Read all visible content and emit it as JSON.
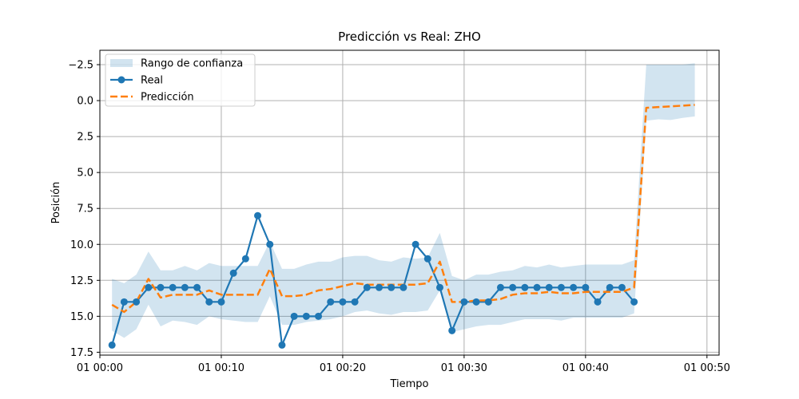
{
  "chart_data": {
    "type": "line",
    "title": "Predicción vs Real: ZHO",
    "xlabel": "Tiempo",
    "ylabel": "Posición",
    "y_inverted": true,
    "ylim": [
      17.7,
      -3.5
    ],
    "xlim": [
      "01 00:00",
      "01 00:51"
    ],
    "x_ticks": [
      {
        "value": 0,
        "label": "01 00:00"
      },
      {
        "value": 10,
        "label": "01 00:10"
      },
      {
        "value": 20,
        "label": "01 00:20"
      },
      {
        "value": 30,
        "label": "01 00:30"
      },
      {
        "value": 40,
        "label": "01 00:40"
      },
      {
        "value": 50,
        "label": "01 00:50"
      }
    ],
    "y_ticks": [
      {
        "value": -2.5,
        "label": "−2.5"
      },
      {
        "value": 0,
        "label": "0.0"
      },
      {
        "value": 2.5,
        "label": "2.5"
      },
      {
        "value": 5,
        "label": "5.0"
      },
      {
        "value": 7.5,
        "label": "7.5"
      },
      {
        "value": 10,
        "label": "10.0"
      },
      {
        "value": 12.5,
        "label": "12.5"
      },
      {
        "value": 15,
        "label": "15.0"
      },
      {
        "value": 17.5,
        "label": "17.5"
      }
    ],
    "grid": true,
    "legend_position": "top-left",
    "series": [
      {
        "name": "Real",
        "kind": "line-markers",
        "color": "#1f77b4",
        "x": [
          1,
          2,
          3,
          4,
          5,
          6,
          7,
          8,
          9,
          10,
          11,
          12,
          13,
          14,
          15,
          16,
          17,
          18,
          19,
          20,
          21,
          22,
          23,
          24,
          25,
          26,
          27,
          28,
          29,
          30,
          31,
          32,
          33,
          34,
          35,
          36,
          37,
          38,
          39,
          40,
          41,
          42,
          43,
          44
        ],
        "y": [
          17,
          14,
          14,
          13,
          13,
          13,
          13,
          13,
          14,
          14,
          12,
          11,
          8,
          10,
          17,
          15,
          15,
          15,
          14,
          14,
          14,
          13,
          13,
          13,
          13,
          10,
          11,
          13,
          16,
          14,
          14,
          14,
          13,
          13,
          13,
          13,
          13,
          13,
          13,
          13,
          14,
          13,
          13,
          14
        ]
      },
      {
        "name": "Predicción",
        "kind": "dashed-line",
        "color": "#ff7f0e",
        "x": [
          1,
          2,
          3,
          4,
          5,
          6,
          7,
          8,
          9,
          10,
          11,
          12,
          13,
          14,
          15,
          16,
          17,
          18,
          19,
          20,
          21,
          22,
          23,
          24,
          25,
          26,
          27,
          28,
          29,
          30,
          31,
          32,
          33,
          34,
          35,
          36,
          37,
          38,
          39,
          40,
          41,
          42,
          43,
          44,
          45,
          46,
          47,
          48,
          49
        ],
        "y": [
          14.2,
          14.7,
          14.0,
          12.4,
          13.7,
          13.5,
          13.5,
          13.5,
          13.2,
          13.5,
          13.5,
          13.5,
          13.5,
          11.7,
          13.6,
          13.6,
          13.5,
          13.2,
          13.1,
          12.9,
          12.7,
          12.8,
          12.8,
          12.8,
          12.8,
          12.8,
          12.7,
          11.2,
          14.0,
          14.0,
          13.9,
          13.9,
          13.8,
          13.5,
          13.4,
          13.4,
          13.3,
          13.4,
          13.4,
          13.3,
          13.3,
          13.3,
          13.3,
          13.0,
          0.5,
          0.45,
          0.4,
          0.35,
          0.3
        ]
      },
      {
        "name": "Rango de confianza",
        "kind": "band",
        "color": "#1f77b4",
        "opacity": 0.2,
        "x": [
          1,
          2,
          3,
          4,
          5,
          6,
          7,
          8,
          9,
          10,
          11,
          12,
          13,
          14,
          15,
          16,
          17,
          18,
          19,
          20,
          21,
          22,
          23,
          24,
          25,
          26,
          27,
          28,
          29,
          30,
          31,
          32,
          33,
          34,
          35,
          36,
          37,
          38,
          39,
          40,
          41,
          42,
          43,
          44,
          45,
          46,
          47,
          48,
          49
        ],
        "lower": [
          12.4,
          12.7,
          12.1,
          10.5,
          11.8,
          11.8,
          11.5,
          11.8,
          11.3,
          11.5,
          11.5,
          11.5,
          11.5,
          9.8,
          11.7,
          11.7,
          11.4,
          11.2,
          11.2,
          10.9,
          10.8,
          10.8,
          11.1,
          11.2,
          10.9,
          11.0,
          10.9,
          9.2,
          12.2,
          12.5,
          12.1,
          12.1,
          11.9,
          11.8,
          11.5,
          11.6,
          11.4,
          11.6,
          11.5,
          11.4,
          11.4,
          11.4,
          11.4,
          11.1,
          -2.5,
          -2.5,
          -2.5,
          -2.5,
          -2.6
        ],
        "upper": [
          16.0,
          16.5,
          15.9,
          14.2,
          15.7,
          15.3,
          15.4,
          15.6,
          15.0,
          15.2,
          15.3,
          15.4,
          15.4,
          13.6,
          15.6,
          15.6,
          15.4,
          15.3,
          15.2,
          15.0,
          14.7,
          14.6,
          14.8,
          14.9,
          14.7,
          14.7,
          14.6,
          13.2,
          16.1,
          15.9,
          15.7,
          15.6,
          15.6,
          15.4,
          15.2,
          15.2,
          15.2,
          15.3,
          15.1,
          15.1,
          15.1,
          15.1,
          15.1,
          14.8,
          1.4,
          1.3,
          1.35,
          1.2,
          1.1
        ]
      }
    ],
    "legend_order": [
      "Rango de confianza",
      "Real",
      "Predicción"
    ]
  }
}
